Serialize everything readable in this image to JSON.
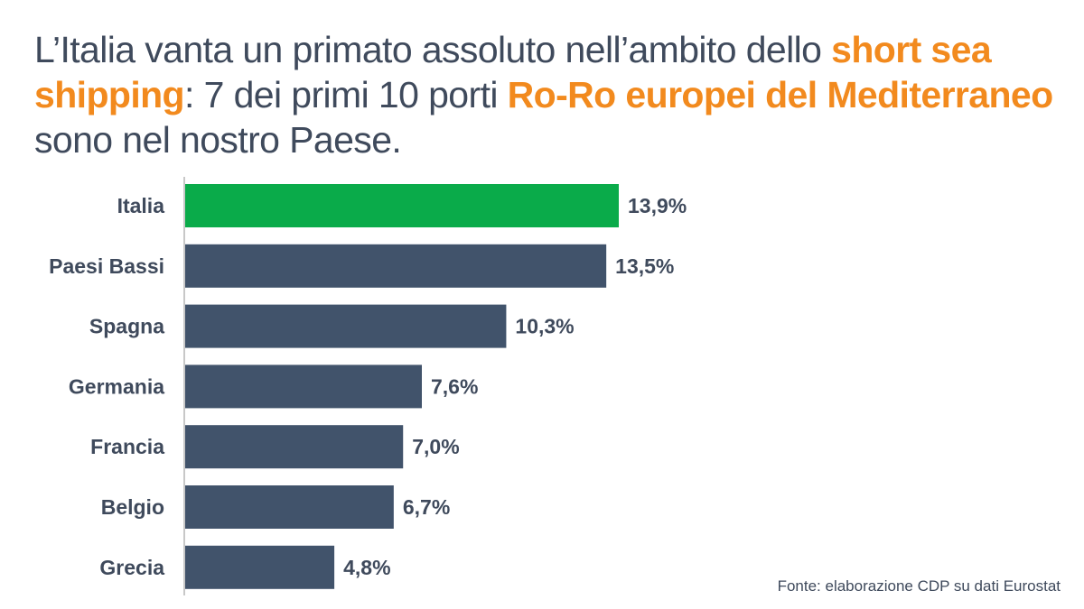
{
  "title": {
    "part1": "L’Italia vanta un primato assoluto nell’ambito dello ",
    "highlight1": "short sea shipping",
    "part2": ": 7 dei primi 10 porti ",
    "highlight2": "Ro-Ro europei del Mediterraneo",
    "part3": " sono nel nostro Paese."
  },
  "colors": {
    "text": "#3f4a5c",
    "highlight": "#f28a1e",
    "bar": "#41536b",
    "bar_highlight": "#0aab4a",
    "axis": "#c8c8c8"
  },
  "chart_data": {
    "type": "bar",
    "orientation": "horizontal",
    "categories": [
      "Italia",
      "Paesi Bassi",
      "Spagna",
      "Germania",
      "Francia",
      "Belgio",
      "Grecia"
    ],
    "values": [
      13.9,
      13.5,
      10.3,
      7.6,
      7.0,
      6.7,
      4.8
    ],
    "value_labels": [
      "13,9%",
      "13,5%",
      "10,3%",
      "7,6%",
      "7,0%",
      "6,7%",
      "4,8%"
    ],
    "highlighted_category": "Italia",
    "xlim": [
      0,
      14
    ],
    "grid": false,
    "legend": "none"
  },
  "source": "Fonte: elaborazione CDP su dati Eurostat"
}
